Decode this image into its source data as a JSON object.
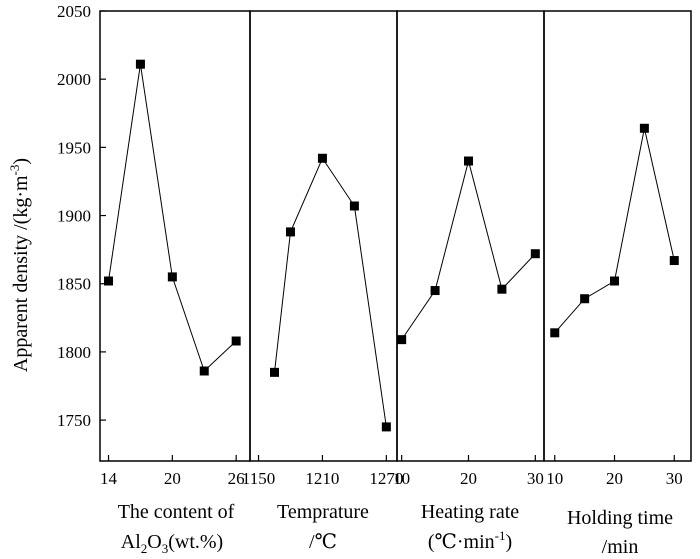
{
  "chart_data": {
    "type": "line",
    "ylabel": "Apparent density /(kg·m",
    "ylabel_sup": "-3",
    "ylabel_close": ")",
    "ylim": [
      1720,
      2050
    ],
    "yticks": [
      1750,
      1800,
      1850,
      1900,
      1950,
      2000,
      2050
    ],
    "ytick_labels": [
      "1750",
      "1800",
      "1850",
      "1900",
      "1950",
      "2000",
      "2050"
    ],
    "panels": [
      {
        "name": "al2o3",
        "xlim": [
          13.2,
          27.3
        ],
        "xticks": [
          14,
          20,
          26
        ],
        "xtick_labels": [
          "14",
          "20",
          "26"
        ],
        "x": [
          14,
          17,
          20,
          23,
          26
        ],
        "values": [
          1852,
          2011,
          1855,
          1786,
          1808
        ],
        "xlabel_line1": "The content of",
        "xlabel_line2": {
          "a": "Al",
          "b": "2",
          "c": "O",
          "d": "3",
          "e": "(wt.%)"
        }
      },
      {
        "name": "temperature",
        "xlim": [
          1142,
          1280
        ],
        "xticks": [
          1150,
          1210,
          1270
        ],
        "xtick_labels": [
          "1150",
          "1210",
          "1270"
        ],
        "x": [
          1165,
          1180,
          1210,
          1240,
          1270
        ],
        "values": [
          1785,
          1888,
          1942,
          1907,
          1745
        ],
        "xlabel_line1": "Temprature",
        "xlabel_line2": "/℃"
      },
      {
        "name": "heating-rate",
        "xlim": [
          9.3,
          31.3
        ],
        "xticks": [
          10,
          20,
          30
        ],
        "xtick_labels": [
          "10",
          "20",
          "30"
        ],
        "x": [
          10,
          15,
          20,
          25,
          30
        ],
        "values": [
          1809,
          1845,
          1940,
          1846,
          1872
        ],
        "xlabel_line1": "Heating rate",
        "xlabel_line2": {
          "a": "(℃·min",
          "b": "-1",
          "c": ")"
        }
      },
      {
        "name": "holding-time",
        "xlim": [
          8.2,
          32.8
        ],
        "xticks": [
          10,
          20,
          30
        ],
        "xtick_labels": [
          "10",
          "20",
          "30"
        ],
        "x": [
          10,
          15,
          20,
          25,
          30
        ],
        "values": [
          1814,
          1839,
          1852,
          1964,
          1867
        ],
        "xlabel_line1": "Holding time",
        "xlabel_line2": "/min"
      }
    ]
  }
}
